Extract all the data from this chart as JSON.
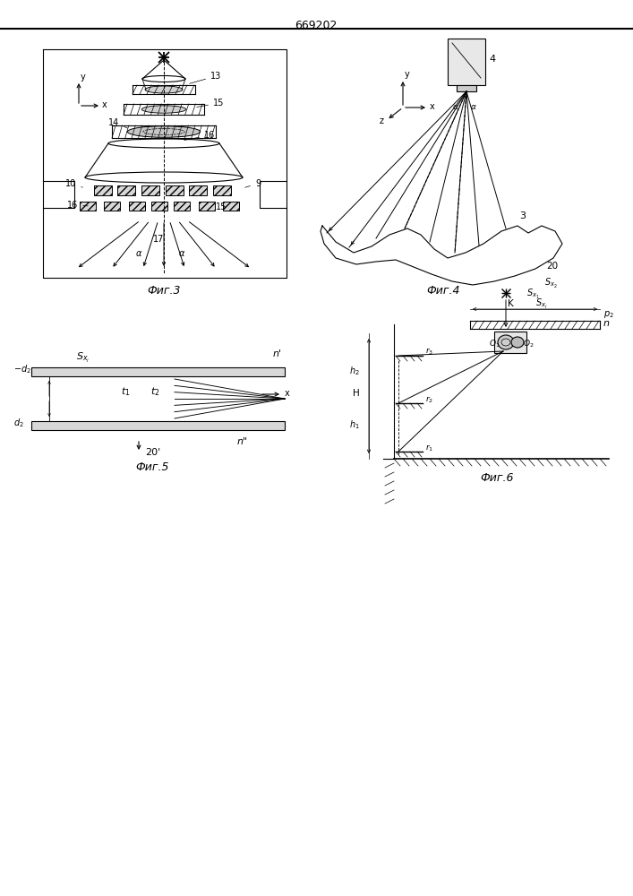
{
  "title": "669202",
  "bg_color": "#ffffff",
  "line_color": "#000000",
  "fig3_label": "Фиг.3",
  "fig4_label": "Фиг.4",
  "fig5_label": "Фиг.5",
  "fig6_label": "Фиг.6"
}
